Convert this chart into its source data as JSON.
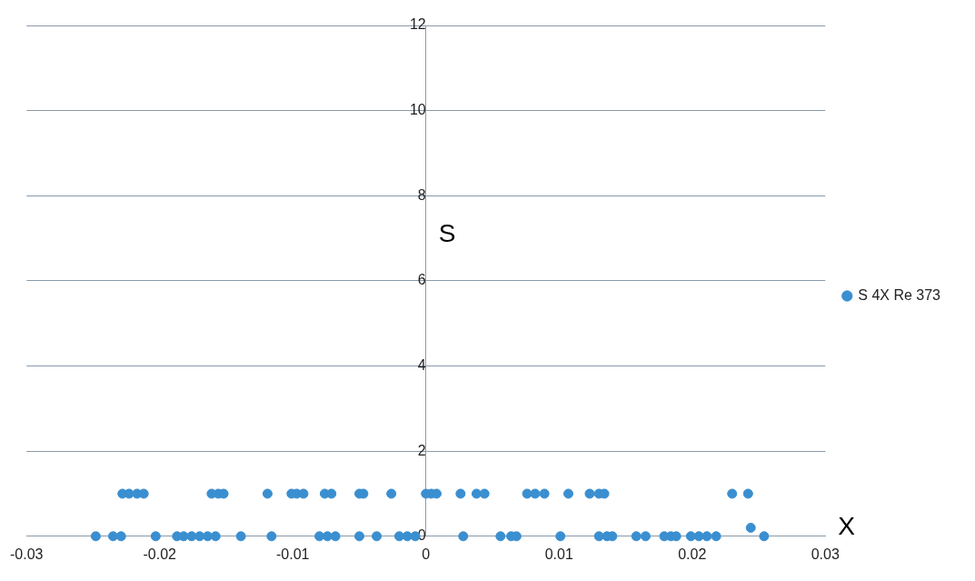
{
  "chart_data": {
    "type": "scatter",
    "xlabel": "X",
    "ylabel": "S",
    "xlim": [
      -0.03,
      0.03
    ],
    "xticks": [
      -0.03,
      -0.02,
      -0.01,
      0,
      0.01,
      0.02,
      0.03
    ],
    "ylim": [
      0,
      12
    ],
    "yticks": [
      0,
      2,
      4,
      6,
      8,
      10,
      12
    ],
    "grid": "y",
    "legend": "right",
    "marker": "circle",
    "series": [
      {
        "name": "S 4X Re 373",
        "color": "#3a8fd0",
        "x": [
          -0.0228,
          -0.0223,
          -0.0217,
          -0.0212,
          -0.0161,
          -0.0156,
          -0.0152,
          -0.0119,
          -0.0101,
          -0.0097,
          -0.0092,
          -0.0076,
          -0.0071,
          -0.005,
          -0.0047,
          -0.0026,
          0,
          0.0004,
          0.0008,
          0.0026,
          0.0038,
          0.0044,
          0.0076,
          0.0082,
          0.0089,
          0.0107,
          0.0123,
          0.013,
          0.0134,
          0.023,
          0.0242,
          -0.0248,
          -0.0235,
          -0.0229,
          -0.0203,
          -0.0187,
          -0.0182,
          -0.0176,
          -0.017,
          -0.0164,
          -0.0158,
          -0.0139,
          -0.0116,
          -0.008,
          -0.0074,
          -0.0068,
          -0.005,
          -0.0037,
          -0.002,
          -0.0014,
          -0.0008,
          0.0028,
          0.0056,
          0.0064,
          0.0068,
          0.0101,
          0.013,
          0.0136,
          0.014,
          0.0158,
          0.0165,
          0.0179,
          0.0184,
          0.0188,
          0.0199,
          0.0205,
          0.0211,
          0.0218,
          0.0244,
          0.0254
        ],
        "values": [
          1,
          1,
          1,
          1,
          1,
          1,
          1,
          1,
          1,
          1,
          1,
          1,
          1,
          1,
          1,
          1,
          1,
          1,
          1,
          1,
          1,
          1,
          1,
          1,
          1,
          1,
          1,
          1,
          1,
          1,
          1,
          0,
          0,
          0,
          0,
          0,
          0,
          0,
          0,
          0,
          0,
          0,
          0,
          0,
          0,
          0,
          0,
          0,
          0,
          0,
          0,
          0,
          0,
          0,
          0,
          0,
          0,
          0,
          0,
          0,
          0,
          0,
          0,
          0,
          0,
          0,
          0,
          0,
          0.2,
          0
        ]
      }
    ]
  }
}
